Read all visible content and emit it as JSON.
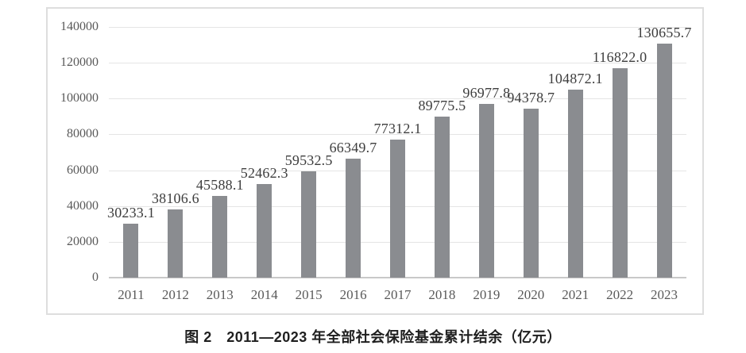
{
  "caption": "图 2　2011—2023 年全部社会保险基金累计结余（亿元）",
  "colors": {
    "bar": "#8a8c90",
    "gridline": "#e5e5e5",
    "axis_line": "#c9c9c9",
    "frame_border": "#dedede",
    "tick_text": "#595959",
    "data_label_text": "#3d3d3d",
    "caption_text": "#1f1f1f"
  },
  "chart_data": {
    "type": "bar",
    "categories": [
      "2011",
      "2012",
      "2013",
      "2014",
      "2015",
      "2016",
      "2017",
      "2018",
      "2019",
      "2020",
      "2021",
      "2022",
      "2023"
    ],
    "values": [
      30233.1,
      38106.6,
      45588.1,
      52462.3,
      59532.5,
      66349.7,
      77312.1,
      89775.5,
      96977.8,
      94378.7,
      104872.1,
      116822.0,
      130655.7
    ],
    "data_labels": [
      "30233.1",
      "38106.6",
      "45588.1",
      "52462.3",
      "59532.5",
      "66349.7",
      "77312.1",
      "89775.5",
      "96977.8",
      "94378.7",
      "104872.1",
      "116822.0",
      "130655.7"
    ],
    "title": "图 2　2011—2023 年全部社会保险基金累计结余（亿元）",
    "xlabel": "",
    "ylabel": "",
    "ylim": [
      0,
      140000
    ],
    "ytick_interval": 20000,
    "ytick_labels": [
      "140000",
      "120000",
      "100000",
      "80000",
      "60000",
      "40000",
      "20000",
      "0"
    ],
    "grid": true,
    "legend": "none",
    "data_label_position": "above-bar-center"
  }
}
